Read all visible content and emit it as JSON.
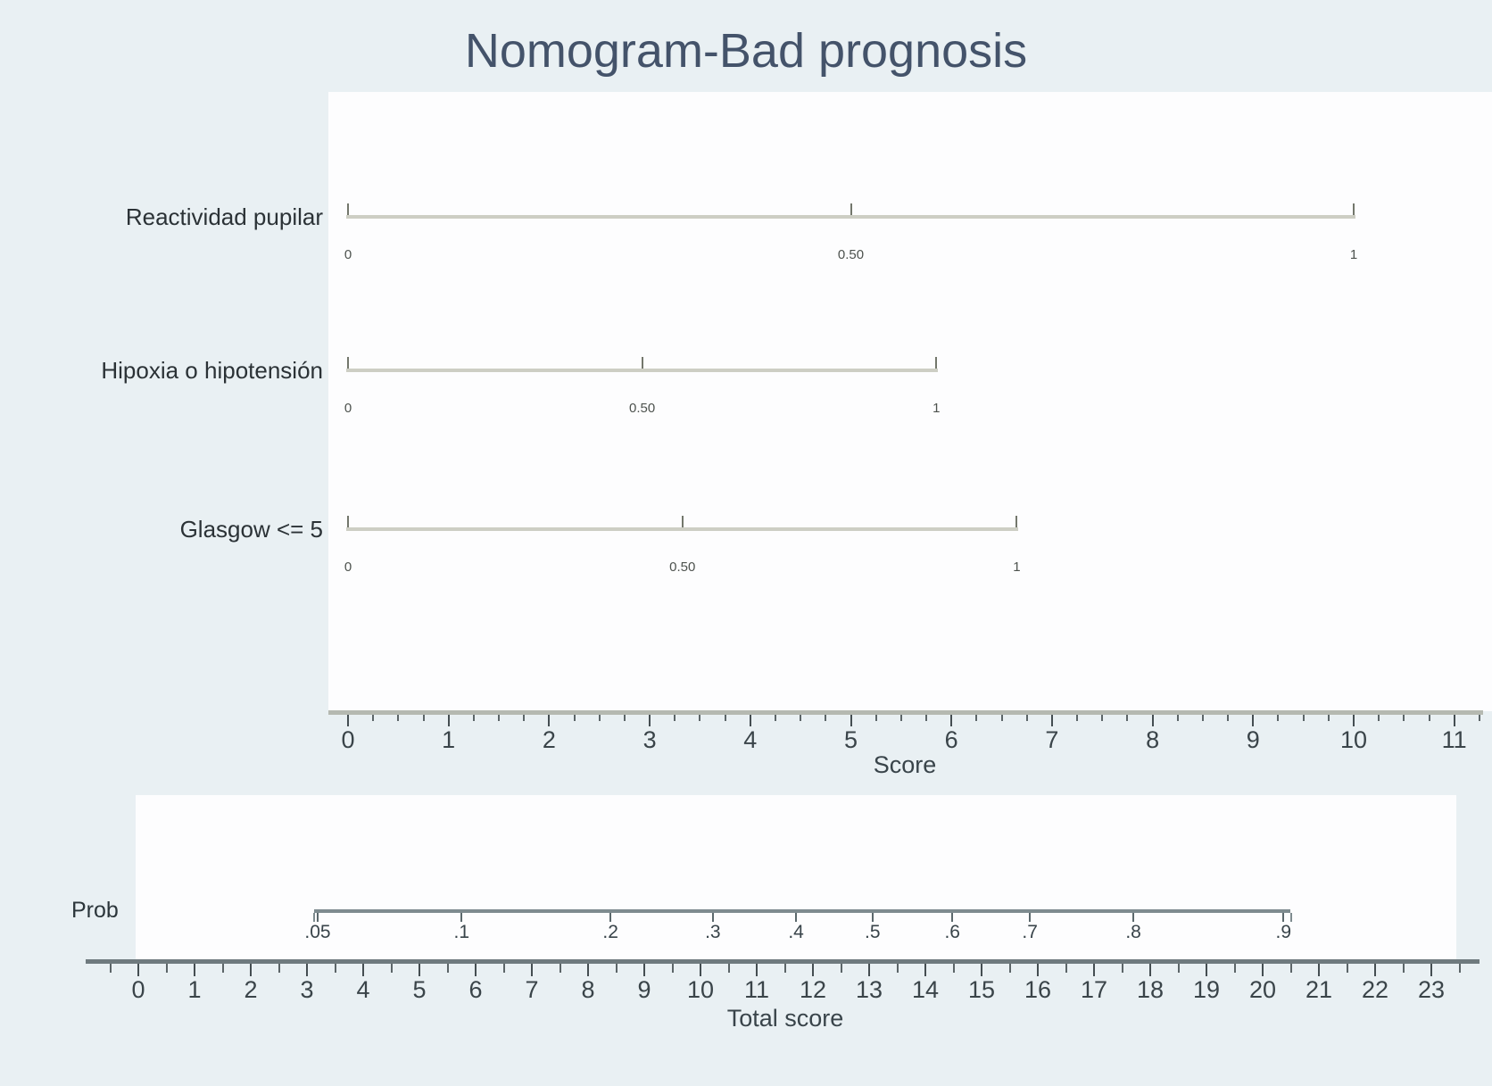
{
  "title": "Nomogram-Bad prognosis",
  "colors": {
    "background": "#e9f0f3",
    "plot_background": "#fdfdfe",
    "title_text": "#44536a",
    "axis_text": "#3a4449",
    "score_axis_line": "#b5b9b1",
    "total_axis_line": "#6f7a7e",
    "prob_line": "#7e8b8f",
    "predictor_line": "#cdcec4",
    "predictor_tick": "#73776c",
    "tick": "#454e52"
  },
  "chart_data": {
    "type": "nomogram",
    "title": "Nomogram-Bad prognosis",
    "score_axis": {
      "label": "Score",
      "min": 0,
      "max": 11,
      "major_tick_step": 1,
      "minor_tick_step": 0.25,
      "tick_labels": [
        "0",
        "1",
        "2",
        "3",
        "4",
        "5",
        "6",
        "7",
        "8",
        "9",
        "10",
        "11"
      ]
    },
    "predictors": [
      {
        "name": "Reactividad pupilar",
        "tick_values": [
          0,
          0.5,
          1
        ],
        "tick_labels": [
          "0",
          "0.50",
          "1"
        ],
        "score_at_value_1": 10.0
      },
      {
        "name": "Hipoxia o hipotensión",
        "tick_values": [
          0,
          0.5,
          1
        ],
        "tick_labels": [
          "0",
          "0.50",
          "1"
        ],
        "score_at_value_1": 5.85
      },
      {
        "name": "Glasgow <= 5",
        "tick_values": [
          0,
          0.5,
          1
        ],
        "tick_labels": [
          "0",
          "0.50",
          "1"
        ],
        "score_at_value_1": 6.65
      }
    ],
    "probability_axis": {
      "label": "Prob",
      "tick_labels": [
        ".05",
        ".1",
        ".2",
        ".3",
        ".4",
        ".5",
        ".6",
        ".7",
        ".8",
        ".9"
      ],
      "tick_positions_total_score": [
        3.19,
        5.75,
        8.4,
        10.22,
        11.7,
        13.06,
        14.48,
        15.86,
        17.7,
        20.37
      ],
      "line_span_total_score": [
        3.13,
        20.5
      ]
    },
    "total_score_axis": {
      "label": "Total score",
      "min": 0,
      "max": 23,
      "major_tick_step": 1,
      "minor_tick_step": 0.5,
      "tick_labels": [
        "0",
        "1",
        "2",
        "3",
        "4",
        "5",
        "6",
        "7",
        "8",
        "9",
        "10",
        "11",
        "12",
        "13",
        "14",
        "15",
        "16",
        "17",
        "18",
        "19",
        "20",
        "21",
        "22",
        "23"
      ]
    }
  }
}
